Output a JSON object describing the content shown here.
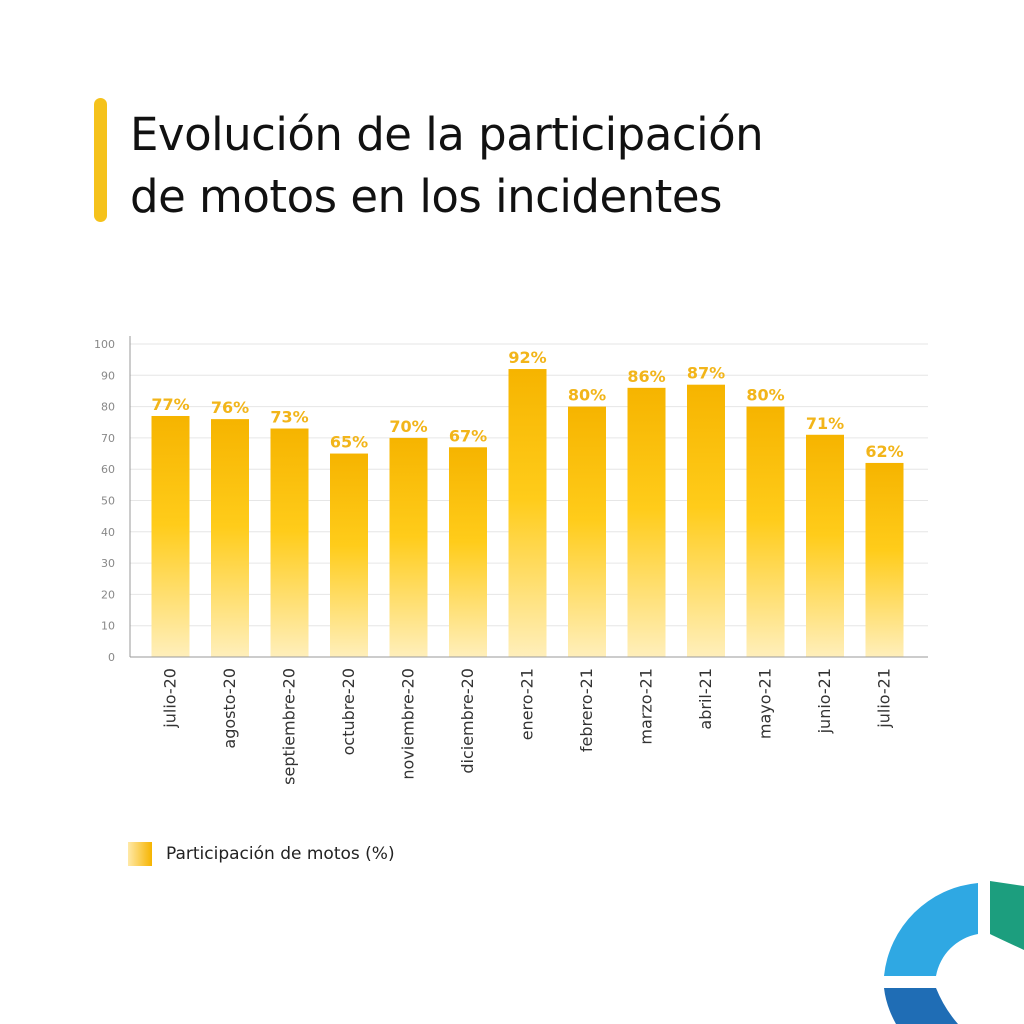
{
  "header": {
    "title_line1": "Evolución de la participación",
    "title_line2": "de motos en los incidentes"
  },
  "chart_data": {
    "type": "bar",
    "categories": [
      "julio-20",
      "agosto-20",
      "septiembre-20",
      "octubre-20",
      "noviembre-20",
      "diciembre-20",
      "enero-21",
      "febrero-21",
      "marzo-21",
      "abril-21",
      "mayo-21",
      "junio-21",
      "julio-21"
    ],
    "series": [
      {
        "name": "Participación de motos (%)",
        "values": [
          77,
          76,
          73,
          65,
          70,
          67,
          92,
          80,
          86,
          87,
          80,
          71,
          62
        ],
        "labels": [
          "77%",
          "76%",
          "73%",
          "65%",
          "70%",
          "67%",
          "92%",
          "80%",
          "86%",
          "87%",
          "80%",
          "71%",
          "62%"
        ]
      }
    ],
    "ylim": [
      0,
      100
    ],
    "yticks": [
      0,
      10,
      20,
      30,
      40,
      50,
      60,
      70,
      80,
      90,
      100
    ],
    "grid": true,
    "legend_position": "bottom-left"
  },
  "legend": {
    "label": "Participación de motos (%)"
  },
  "colors": {
    "accent": "#f5c21b",
    "bar_top": "#f6b400",
    "bar_mid": "#ffcc1a",
    "bar_bottom": "#ffefbb",
    "data_label": "#f2b51a",
    "logo_blue": "#2fa8e3",
    "logo_green": "#1c9e7e",
    "logo_dark_blue": "#1f6db5"
  }
}
